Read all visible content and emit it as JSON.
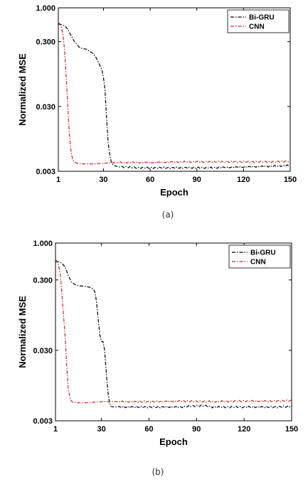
{
  "chart_data": [
    {
      "type": "line",
      "panel": "(a)",
      "xlabel": "Epoch",
      "ylabel": "Normalized MSE",
      "xlim": [
        1,
        150
      ],
      "ylim": [
        0.003,
        1.0
      ],
      "yscale": "log",
      "xticks": [
        "1",
        "30",
        "60",
        "90",
        "120",
        "150"
      ],
      "yticks": [
        "1.000",
        "0.300",
        "0.030",
        "0.003"
      ],
      "legend": "top-right",
      "grid": false,
      "series": [
        {
          "name": "Bi-GRU",
          "color": "#000000",
          "style": "dashdot",
          "x": [
            1,
            3,
            5,
            7,
            9,
            11,
            13,
            15,
            17,
            19,
            21,
            23,
            25,
            27,
            29,
            30,
            31,
            32,
            33,
            34,
            35,
            36,
            38,
            40,
            45,
            50,
            60,
            80,
            100,
            120,
            140,
            150
          ],
          "y": [
            0.56,
            0.55,
            0.53,
            0.47,
            0.38,
            0.31,
            0.27,
            0.24,
            0.235,
            0.23,
            0.215,
            0.2,
            0.175,
            0.14,
            0.11,
            0.085,
            0.055,
            0.02,
            0.0085,
            0.0055,
            0.0042,
            0.0038,
            0.0036,
            0.0035,
            0.0035,
            0.0034,
            0.0034,
            0.0034,
            0.0034,
            0.0035,
            0.0036,
            0.0037
          ]
        },
        {
          "name": "CNN",
          "color": "#d42020",
          "style": "dashdot",
          "x": [
            1,
            2,
            3,
            4,
            5,
            6,
            7,
            8,
            9,
            10,
            11,
            12,
            13,
            14,
            15,
            17,
            20,
            25,
            30,
            40,
            60,
            80,
            100,
            120,
            140,
            150
          ],
          "y": [
            0.58,
            0.57,
            0.5,
            0.38,
            0.22,
            0.09,
            0.035,
            0.012,
            0.0065,
            0.0048,
            0.0043,
            0.0041,
            0.004,
            0.004,
            0.004,
            0.0039,
            0.0039,
            0.0039,
            0.004,
            0.0041,
            0.0041,
            0.0042,
            0.0042,
            0.0042,
            0.0042,
            0.0043
          ]
        }
      ]
    },
    {
      "type": "line",
      "panel": "(b)",
      "xlabel": "Epoch",
      "ylabel": "Normalized MSE",
      "xlim": [
        1,
        150
      ],
      "ylim": [
        0.003,
        1.0
      ],
      "yscale": "log",
      "xticks": [
        "1",
        "30",
        "60",
        "90",
        "120",
        "150"
      ],
      "yticks": [
        "1.000",
        "0.300",
        "0.030",
        "0.003"
      ],
      "legend": "top-right",
      "grid": false,
      "series": [
        {
          "name": "Bi-GRU",
          "color": "#000000",
          "style": "dashdot",
          "x": [
            1,
            3,
            5,
            7,
            9,
            11,
            13,
            15,
            17,
            19,
            21,
            23,
            25,
            26,
            27,
            28,
            29,
            30,
            31,
            32,
            33,
            34,
            35,
            36,
            38,
            40,
            45,
            50,
            60,
            80,
            90,
            95,
            100,
            120,
            140,
            150
          ],
          "y": [
            0.55,
            0.54,
            0.52,
            0.46,
            0.35,
            0.28,
            0.26,
            0.25,
            0.245,
            0.245,
            0.24,
            0.235,
            0.22,
            0.2,
            0.14,
            0.08,
            0.05,
            0.04,
            0.04,
            0.03,
            0.015,
            0.008,
            0.0055,
            0.0048,
            0.0047,
            0.0047,
            0.0047,
            0.0047,
            0.0047,
            0.0047,
            0.0049,
            0.0049,
            0.0047,
            0.0047,
            0.0047,
            0.0048
          ]
        },
        {
          "name": "CNN",
          "color": "#d42020",
          "style": "dashdot",
          "x": [
            1,
            2,
            3,
            4,
            5,
            6,
            7,
            8,
            9,
            10,
            11,
            12,
            13,
            14,
            15,
            17,
            20,
            25,
            30,
            40,
            60,
            80,
            100,
            120,
            140,
            150
          ],
          "y": [
            0.58,
            0.55,
            0.48,
            0.36,
            0.2,
            0.1,
            0.05,
            0.02,
            0.009,
            0.0065,
            0.0057,
            0.0055,
            0.0055,
            0.0054,
            0.0054,
            0.0054,
            0.0054,
            0.0055,
            0.0056,
            0.0056,
            0.0056,
            0.0057,
            0.0056,
            0.0057,
            0.0057,
            0.0058
          ]
        }
      ]
    }
  ],
  "captions": [
    "(a)",
    "(b)"
  ]
}
